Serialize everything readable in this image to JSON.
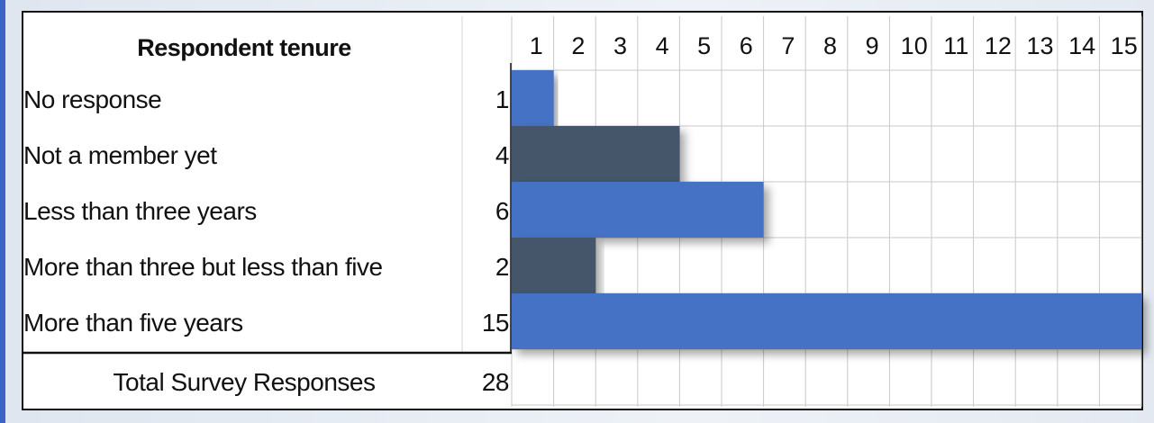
{
  "chart_data": {
    "type": "bar",
    "orientation": "horizontal",
    "title": "Respondent tenure",
    "categories": [
      "No response",
      "Not a member yet",
      "Less than three years",
      "More than three but less than five",
      "More than five years"
    ],
    "values": [
      1,
      4,
      6,
      2,
      15
    ],
    "bar_colors": [
      "#4472c4",
      "#44546a",
      "#4472c4",
      "#44546a",
      "#4472c4"
    ],
    "axis_ticks": [
      "1",
      "2",
      "3",
      "4",
      "5",
      "6",
      "7",
      "8",
      "9",
      "10",
      "11",
      "12",
      "13",
      "14",
      "15"
    ],
    "xlim": [
      0,
      15
    ],
    "grid": true,
    "total_label": "Total Survey Responses",
    "total_value": 28
  }
}
